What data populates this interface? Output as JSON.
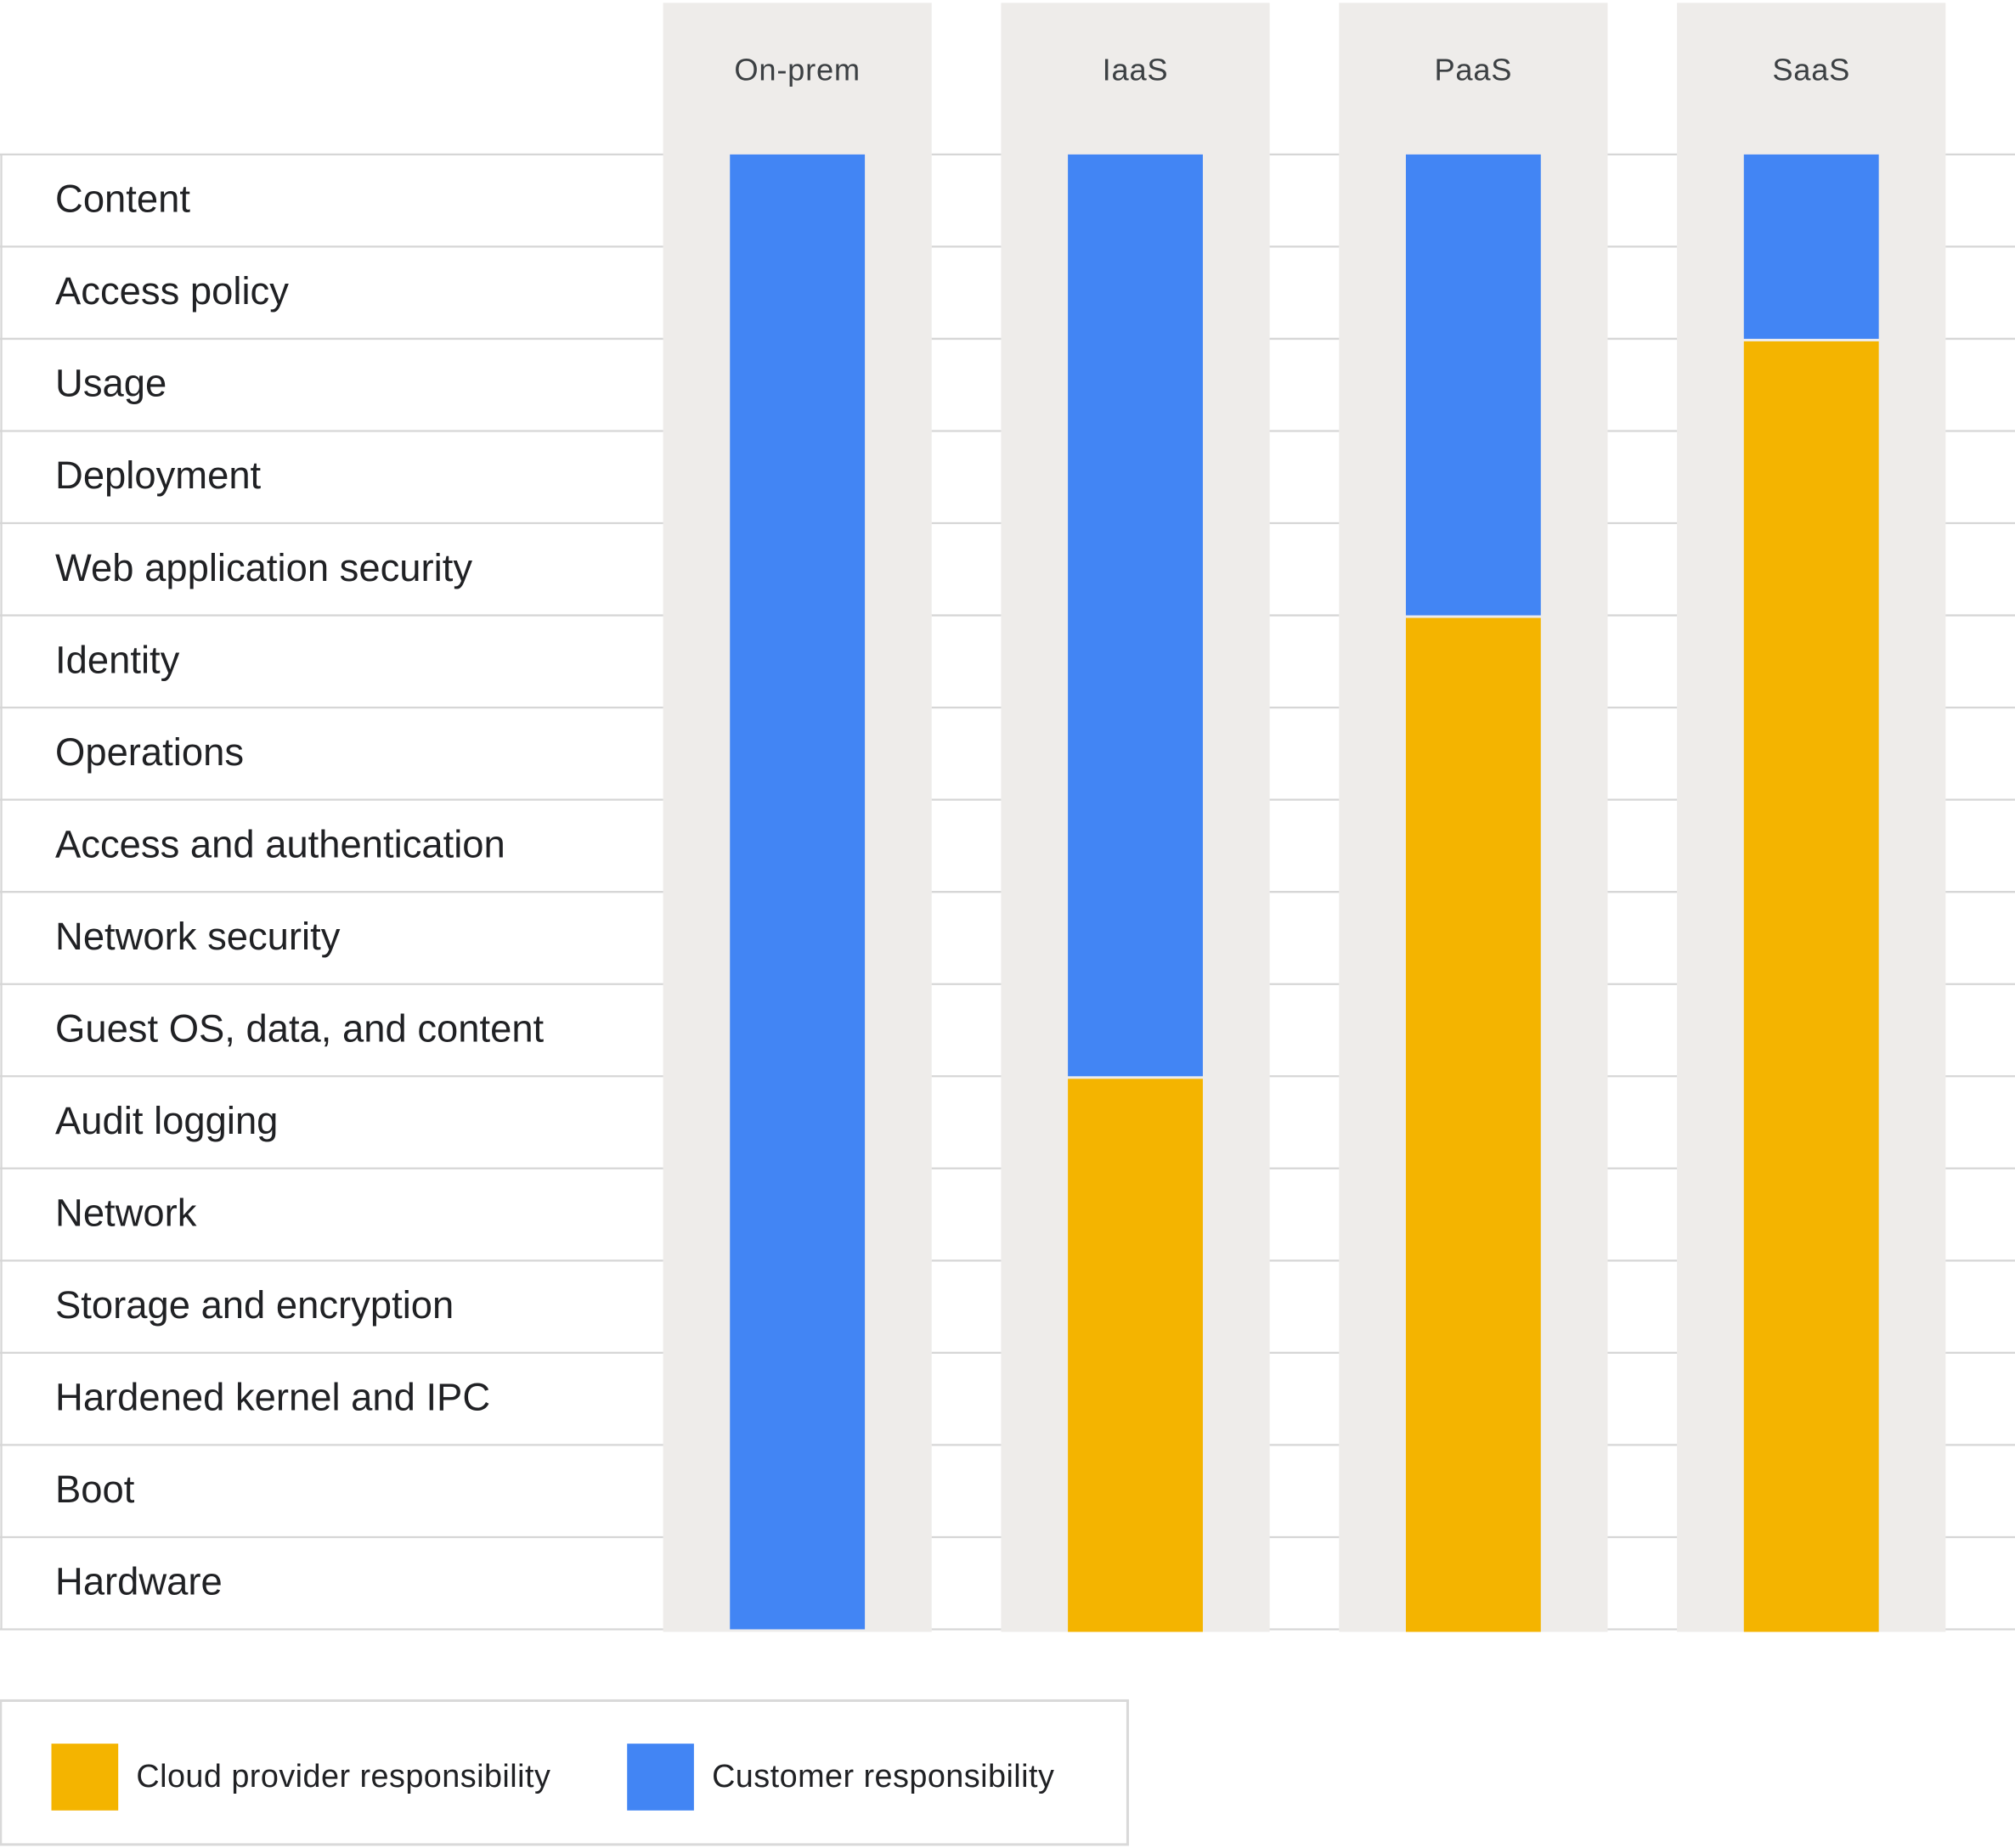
{
  "columns": [
    {
      "name": "On-prem",
      "customer": 16,
      "provider": 0
    },
    {
      "name": "IaaS",
      "customer": 10,
      "provider": 6
    },
    {
      "name": "PaaS",
      "customer": 5,
      "provider": 11
    },
    {
      "name": "SaaS",
      "customer": 2,
      "provider": 14
    }
  ],
  "rows": [
    "Content",
    "Access policy",
    "Usage",
    "Deployment",
    "Web application security",
    "Identity",
    "Operations",
    "Access and authentication",
    "Network security",
    "Guest OS, data, and content",
    "Audit logging",
    "Network",
    "Storage and encryption",
    "Hardened kernel and IPC",
    "Boot",
    "Hardware"
  ],
  "legend": [
    {
      "label": "Cloud provider responsibility",
      "color": "#f4b400"
    },
    {
      "label": "Customer responsibility",
      "color": "#4285f4"
    }
  ]
}
